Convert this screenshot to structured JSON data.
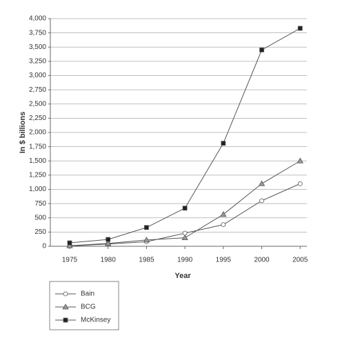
{
  "chart_data": {
    "type": "line",
    "x_label": "Year",
    "y_label": "In $ billions",
    "categories": [
      "1975",
      "1980",
      "1985",
      "1990",
      "1995",
      "2000",
      "2005"
    ],
    "series": [
      {
        "name": "Bain",
        "color": "#ffffff",
        "marker": "circle",
        "values": [
          5,
          40,
          80,
          230,
          380,
          800,
          1100
        ]
      },
      {
        "name": "BCG",
        "color": "#999999",
        "marker": "triangle",
        "values": [
          10,
          50,
          110,
          150,
          560,
          1100,
          1500
        ]
      },
      {
        "name": "McKinsey",
        "color": "#222222",
        "marker": "square",
        "values": [
          60,
          120,
          330,
          670,
          1810,
          3450,
          3830
        ]
      }
    ],
    "ylim": [
      0,
      4000
    ],
    "yticks": [
      0,
      250,
      500,
      750,
      {
        "value": 1000,
        "label": "1,000"
      },
      {
        "value": 1250,
        "label": "1,250"
      },
      {
        "value": 1500,
        "label": "1,500"
      },
      {
        "value": 1750,
        "label": "1,750"
      },
      {
        "value": 2000,
        "label": "2,000"
      },
      {
        "value": 2250,
        "label": "2,250"
      },
      {
        "value": 2500,
        "label": "2,500"
      },
      {
        "value": 2750,
        "label": "2,750"
      },
      {
        "value": 3000,
        "label": "3,000"
      },
      {
        "value": 3250,
        "label": "3,250"
      },
      {
        "value": 3500,
        "label": "3,500"
      },
      {
        "value": 3750,
        "label": "3,750"
      },
      {
        "value": 4000,
        "label": "4,000"
      }
    ],
    "grid": true,
    "legend": "bottom-left"
  }
}
